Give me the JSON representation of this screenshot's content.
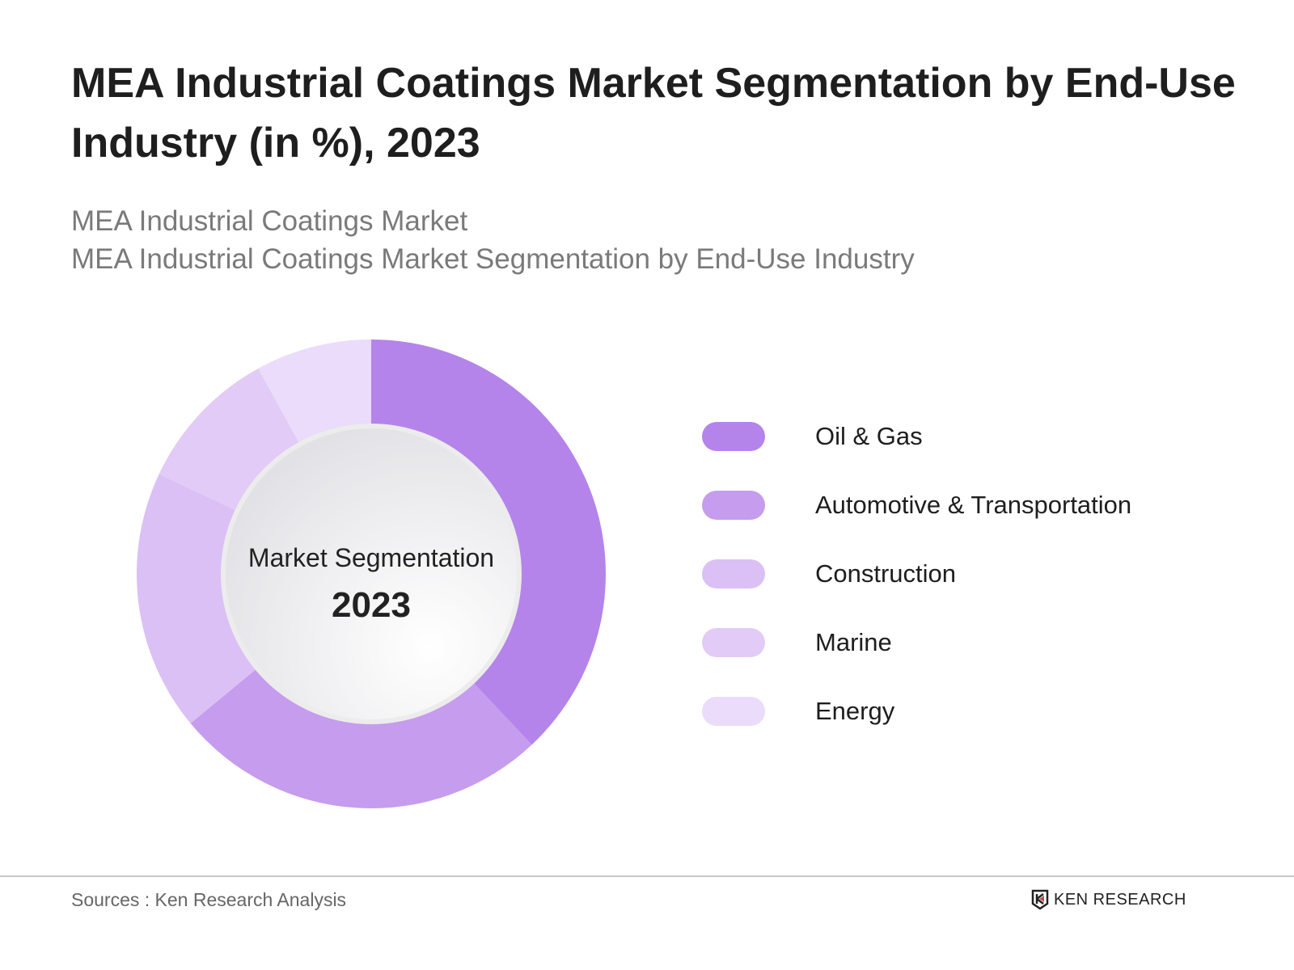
{
  "title": "MEA Industrial Coatings Market Segmentation by End-Use Industry (in %), 2023",
  "subtitle_1": "MEA Industrial Coatings Market",
  "subtitle_2": "MEA Industrial Coatings Market Segmentation by End-Use Industry",
  "center": {
    "label": "Market Segmentation",
    "year": "2023"
  },
  "source": "Sources : Ken Research Analysis",
  "logo": "KEN RESEARCH",
  "chart_data": {
    "type": "pie",
    "variant": "donut",
    "title": "MEA Industrial Coatings Market Segmentation by End-Use Industry (in %), 2023",
    "legend_position": "right",
    "categories": [
      "Oil & Gas",
      "Automotive & Transportation",
      "Construction",
      "Marine",
      "Energy"
    ],
    "values": [
      38,
      26,
      18,
      10,
      8
    ],
    "colors": [
      "#b484ea",
      "#c59cee",
      "#dbc0f5",
      "#e2cbf6",
      "#eadcfa"
    ]
  }
}
